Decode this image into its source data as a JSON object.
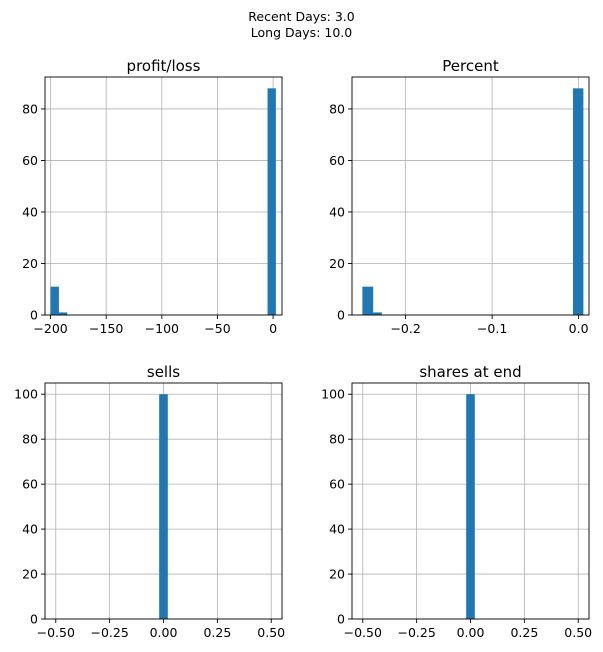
{
  "figure": {
    "suptitle_lines": [
      "Recent Days: 3.0",
      "Long Days: 10.0"
    ]
  },
  "colors": {
    "bar": "#1f77b4",
    "grid": "#b0b0b0",
    "axis": "#000000",
    "background": "#ffffff"
  },
  "chart_data": [
    {
      "type": "bar",
      "title": "profit/loss",
      "xlim": [
        -205,
        8
      ],
      "ylim": [
        0,
        92.4
      ],
      "grid": true,
      "xticks": [
        -200,
        -150,
        -100,
        -50,
        0
      ],
      "xtick_labels": [
        "−200",
        "−150",
        "−100",
        "−50",
        "0"
      ],
      "yticks": [
        0,
        20,
        40,
        60,
        80
      ],
      "ytick_labels": [
        "0",
        "20",
        "40",
        "60",
        "80"
      ],
      "bins": [
        {
          "x0": -200.0,
          "x1": -192.5,
          "count": 11
        },
        {
          "x0": -192.5,
          "x1": -185.0,
          "count": 1
        },
        {
          "x0": -5.0,
          "x1": 2.5,
          "count": 88
        }
      ]
    },
    {
      "type": "bar",
      "title": "Percent",
      "xlim": [
        -0.262,
        0.012
      ],
      "ylim": [
        0,
        92.4
      ],
      "grid": true,
      "xticks": [
        -0.2,
        -0.1,
        0.0
      ],
      "xtick_labels": [
        "−0.2",
        "−0.1",
        "0.0"
      ],
      "yticks": [
        0,
        20,
        40,
        60,
        80
      ],
      "ytick_labels": [
        "0",
        "20",
        "40",
        "60",
        "80"
      ],
      "bins": [
        {
          "x0": -0.25,
          "x1": -0.2375,
          "count": 11
        },
        {
          "x0": -0.2375,
          "x1": -0.2275,
          "count": 1
        },
        {
          "x0": -0.0065,
          "x1": 0.0055,
          "count": 88
        }
      ]
    },
    {
      "type": "bar",
      "title": "sells",
      "xlim": [
        -0.55,
        0.55
      ],
      "ylim": [
        0,
        105
      ],
      "grid": true,
      "xticks": [
        -0.5,
        -0.25,
        0.0,
        0.25,
        0.5
      ],
      "xtick_labels": [
        "−0.50",
        "−0.25",
        "0.00",
        "0.25",
        "0.50"
      ],
      "yticks": [
        0,
        20,
        40,
        60,
        80,
        100
      ],
      "ytick_labels": [
        "0",
        "20",
        "40",
        "60",
        "80",
        "100"
      ],
      "bins": [
        {
          "x0": -0.02,
          "x1": 0.02,
          "count": 100
        }
      ]
    },
    {
      "type": "bar",
      "title": "shares at end",
      "xlim": [
        -0.55,
        0.55
      ],
      "ylim": [
        0,
        105
      ],
      "grid": true,
      "xticks": [
        -0.5,
        -0.25,
        0.0,
        0.25,
        0.5
      ],
      "xtick_labels": [
        "−0.50",
        "−0.25",
        "0.00",
        "0.25",
        "0.50"
      ],
      "yticks": [
        0,
        20,
        40,
        60,
        80,
        100
      ],
      "ytick_labels": [
        "0",
        "20",
        "40",
        "60",
        "80",
        "100"
      ],
      "bins": [
        {
          "x0": -0.02,
          "x1": 0.02,
          "count": 100
        }
      ]
    }
  ]
}
